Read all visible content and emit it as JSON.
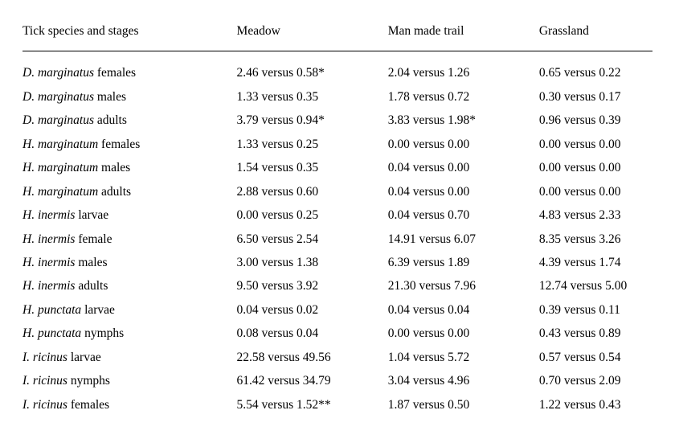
{
  "table": {
    "columns": [
      "Tick species and stages",
      "Meadow",
      "Man made trail",
      "Grassland"
    ],
    "column_widths_pct": [
      34,
      24,
      24,
      18
    ],
    "font_family": "Times New Roman",
    "font_size_pt": 12,
    "header_border_color": "#000000",
    "text_color": "#000000",
    "rows": [
      {
        "species": "D. marginatus",
        "stage": "females",
        "meadow": "2.46 versus 0.58*",
        "trail": "2.04 versus 1.26",
        "grass": "0.65 versus 0.22"
      },
      {
        "species": "D. marginatus",
        "stage": "males",
        "meadow": "1.33 versus 0.35",
        "trail": "1.78 versus 0.72",
        "grass": "0.30 versus 0.17"
      },
      {
        "species": "D. marginatus",
        "stage": "adults",
        "meadow": "3.79 versus 0.94*",
        "trail": "3.83 versus 1.98*",
        "grass": "0.96 versus 0.39"
      },
      {
        "species": "H. marginatum",
        "stage": "females",
        "meadow": "1.33 versus 0.25",
        "trail": "0.00 versus 0.00",
        "grass": "0.00 versus 0.00"
      },
      {
        "species": "H. marginatum",
        "stage": "males",
        "meadow": "1.54 versus 0.35",
        "trail": "0.04 versus 0.00",
        "grass": "0.00 versus 0.00"
      },
      {
        "species": "H. marginatum",
        "stage": "adults",
        "meadow": "2.88 versus 0.60",
        "trail": "0.04 versus 0.00",
        "grass": "0.00 versus 0.00"
      },
      {
        "species": "H. inermis",
        "stage": "larvae",
        "meadow": "0.00 versus 0.25",
        "trail": "0.04 versus 0.70",
        "grass": "4.83 versus 2.33"
      },
      {
        "species": "H. inermis",
        "stage": "female",
        "meadow": "6.50 versus 2.54",
        "trail": "14.91 versus 6.07",
        "grass": "8.35 versus 3.26"
      },
      {
        "species": "H. inermis",
        "stage": "males",
        "meadow": "3.00 versus 1.38",
        "trail": "6.39 versus 1.89",
        "grass": "4.39 versus 1.74"
      },
      {
        "species": "H. inermis",
        "stage": "adults",
        "meadow": "9.50 versus 3.92",
        "trail": "21.30 versus 7.96",
        "grass": "12.74 versus 5.00"
      },
      {
        "species": "H. punctata",
        "stage": "larvae",
        "meadow": "0.04 versus 0.02",
        "trail": "0.04 versus 0.04",
        "grass": "0.39 versus 0.11"
      },
      {
        "species": "H. punctata",
        "stage": "nymphs",
        "meadow": "0.08 versus 0.04",
        "trail": "0.00 versus 0.00",
        "grass": "0.43 versus 0.89"
      },
      {
        "species": "I. ricinus",
        "stage": "larvae",
        "meadow": "22.58 versus 49.56",
        "trail": "1.04 versus 5.72",
        "grass": "0.57 versus 0.54"
      },
      {
        "species": "I. ricinus",
        "stage": "nymphs",
        "meadow": "61.42 versus 34.79",
        "trail": "3.04 versus 4.96",
        "grass": "0.70 versus 2.09"
      },
      {
        "species": "I. ricinus",
        "stage": "females",
        "meadow": "5.54 versus 1.52**",
        "trail": "1.87 versus 0.50",
        "grass": "1.22 versus 0.43"
      }
    ]
  }
}
